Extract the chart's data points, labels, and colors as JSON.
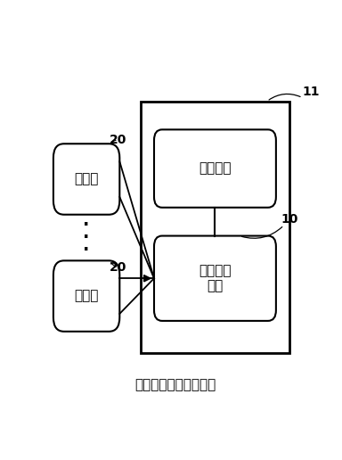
{
  "bg_color": "#ffffff",
  "border_color": "#000000",
  "title": "微服务的数据传输结构",
  "ms1_label": "微服务",
  "ms2_label": "微服务",
  "storage_label": "存储模块",
  "data_conn_label": "数据连接\n模块",
  "label_20_top": "20",
  "label_20_bot": "20",
  "label_11": "11",
  "label_10": "10",
  "font_size_label": 11,
  "font_size_title": 11,
  "font_size_number": 10
}
